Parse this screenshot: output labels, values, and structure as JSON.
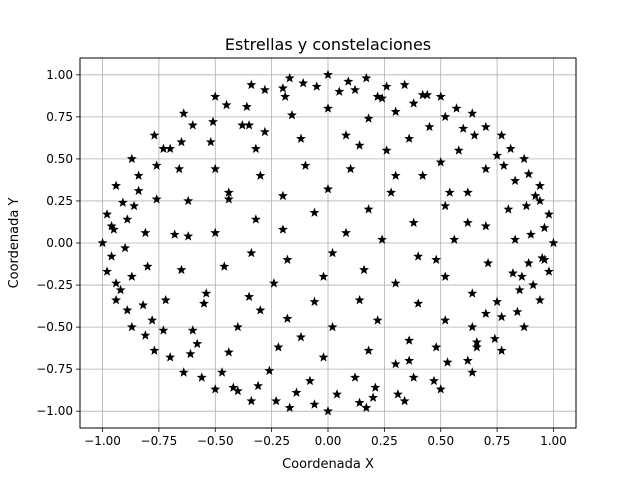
{
  "chart_data": {
    "type": "scatter",
    "title": "Estrellas y constelaciones",
    "xlabel": "Coordenada X",
    "ylabel": "Coordenada Y",
    "xlim": [
      -1.1,
      1.1
    ],
    "ylim": [
      -1.1,
      1.1
    ],
    "xticks": [
      -1.0,
      -0.75,
      -0.5,
      -0.25,
      0.0,
      0.25,
      0.5,
      0.75,
      1.0
    ],
    "xtick_labels": [
      "−1.00",
      "−0.75",
      "−0.50",
      "−0.25",
      "0.00",
      "0.25",
      "0.50",
      "0.75",
      "1.00"
    ],
    "yticks": [
      -1.0,
      -0.75,
      -0.5,
      -0.25,
      0.0,
      0.25,
      0.5,
      0.75,
      1.0
    ],
    "ytick_labels": [
      "−1.00",
      "−0.75",
      "−0.50",
      "−0.25",
      "0.00",
      "0.25",
      "0.50",
      "0.75",
      "1.00"
    ],
    "grid": true,
    "marker": "star",
    "marker_color": "#000000",
    "series": [
      {
        "points": [
          [
            0.0,
            1.0
          ],
          [
            0.17,
            0.98
          ],
          [
            0.34,
            0.94
          ],
          [
            0.5,
            0.87
          ],
          [
            0.64,
            0.77
          ],
          [
            0.77,
            0.64
          ],
          [
            0.87,
            0.5
          ],
          [
            0.94,
            0.34
          ],
          [
            0.98,
            0.17
          ],
          [
            1.0,
            0.0
          ],
          [
            0.98,
            -0.17
          ],
          [
            0.94,
            -0.34
          ],
          [
            0.87,
            -0.5
          ],
          [
            0.77,
            -0.64
          ],
          [
            0.64,
            -0.77
          ],
          [
            0.5,
            -0.87
          ],
          [
            0.34,
            -0.94
          ],
          [
            0.17,
            -0.98
          ],
          [
            0.0,
            -1.0
          ],
          [
            -0.17,
            -0.98
          ],
          [
            -0.34,
            -0.94
          ],
          [
            -0.5,
            -0.87
          ],
          [
            -0.64,
            -0.77
          ],
          [
            -0.77,
            -0.64
          ],
          [
            -0.87,
            -0.5
          ],
          [
            -0.94,
            -0.34
          ],
          [
            -0.98,
            -0.17
          ],
          [
            -1.0,
            0.0
          ],
          [
            -0.98,
            0.17
          ],
          [
            -0.94,
            0.34
          ],
          [
            -0.87,
            0.5
          ],
          [
            -0.77,
            0.64
          ],
          [
            -0.64,
            0.77
          ],
          [
            -0.5,
            0.87
          ],
          [
            -0.34,
            0.94
          ],
          [
            -0.17,
            0.98
          ],
          [
            0.09,
            0.96
          ],
          [
            0.26,
            0.93
          ],
          [
            0.42,
            0.88
          ],
          [
            0.57,
            0.8
          ],
          [
            0.7,
            0.69
          ],
          [
            0.81,
            0.56
          ],
          [
            0.89,
            0.41
          ],
          [
            0.94,
            0.25
          ],
          [
            0.96,
            0.09
          ],
          [
            0.95,
            -0.09
          ],
          [
            0.91,
            -0.25
          ],
          [
            0.84,
            -0.41
          ],
          [
            0.74,
            -0.57
          ],
          [
            0.62,
            -0.7
          ],
          [
            0.47,
            -0.82
          ],
          [
            0.31,
            -0.9
          ],
          [
            0.14,
            -0.95
          ],
          [
            -0.06,
            -0.96
          ],
          [
            -0.23,
            -0.94
          ],
          [
            -0.4,
            -0.88
          ],
          [
            -0.56,
            -0.8
          ],
          [
            -0.7,
            -0.68
          ],
          [
            -0.81,
            -0.55
          ],
          [
            -0.89,
            -0.4
          ],
          [
            -0.94,
            -0.24
          ],
          [
            -0.96,
            -0.08
          ],
          [
            -0.95,
            0.08
          ],
          [
            -0.91,
            0.24
          ],
          [
            -0.84,
            0.4
          ],
          [
            -0.73,
            0.56
          ],
          [
            -0.6,
            0.7
          ],
          [
            -0.45,
            0.82
          ],
          [
            -0.28,
            0.91
          ],
          [
            -0.11,
            0.95
          ],
          [
            0.05,
            0.9
          ],
          [
            0.22,
            0.87
          ],
          [
            0.38,
            0.83
          ],
          [
            0.52,
            0.75
          ],
          [
            0.65,
            0.64
          ],
          [
            0.75,
            0.52
          ],
          [
            0.83,
            0.37
          ],
          [
            0.88,
            0.22
          ],
          [
            0.9,
            0.05
          ],
          [
            0.89,
            -0.12
          ],
          [
            0.85,
            -0.28
          ],
          [
            0.77,
            -0.44
          ],
          [
            0.66,
            -0.59
          ],
          [
            0.53,
            -0.71
          ],
          [
            0.38,
            -0.8
          ],
          [
            0.21,
            -0.86
          ],
          [
            0.04,
            -0.9
          ],
          [
            -0.14,
            -0.89
          ],
          [
            -0.31,
            -0.85
          ],
          [
            -0.47,
            -0.77
          ],
          [
            -0.61,
            -0.66
          ],
          [
            -0.73,
            -0.52
          ],
          [
            -0.82,
            -0.37
          ],
          [
            -0.87,
            -0.2
          ],
          [
            -0.9,
            -0.03
          ],
          [
            -0.89,
            0.14
          ],
          [
            -0.84,
            0.31
          ],
          [
            -0.76,
            0.46
          ],
          [
            -0.65,
            0.6
          ],
          [
            -0.51,
            0.72
          ],
          [
            -0.36,
            0.81
          ],
          [
            -0.19,
            0.87
          ],
          [
            -0.05,
            0.93
          ],
          [
            0.12,
            0.91
          ],
          [
            0.3,
            0.78
          ],
          [
            0.45,
            0.69
          ],
          [
            0.58,
            0.55
          ],
          [
            0.7,
            0.44
          ],
          [
            0.8,
            0.2
          ],
          [
            0.83,
            0.02
          ],
          [
            0.82,
            -0.18
          ],
          [
            0.75,
            -0.35
          ],
          [
            0.64,
            -0.5
          ],
          [
            0.48,
            -0.62
          ],
          [
            0.3,
            -0.72
          ],
          [
            0.12,
            -0.8
          ],
          [
            -0.08,
            -0.82
          ],
          [
            -0.26,
            -0.76
          ],
          [
            -0.44,
            -0.65
          ],
          [
            -0.6,
            -0.52
          ],
          [
            -0.72,
            -0.34
          ],
          [
            -0.8,
            -0.14
          ],
          [
            -0.81,
            0.06
          ],
          [
            -0.76,
            0.26
          ],
          [
            -0.66,
            0.44
          ],
          [
            -0.52,
            0.6
          ],
          [
            -0.35,
            0.7
          ],
          [
            -0.16,
            0.76
          ],
          [
            0.0,
            0.8
          ],
          [
            0.18,
            0.74
          ],
          [
            0.36,
            0.62
          ],
          [
            0.5,
            0.48
          ],
          [
            0.62,
            0.3
          ],
          [
            0.7,
            0.1
          ],
          [
            0.71,
            -0.12
          ],
          [
            0.64,
            -0.3
          ],
          [
            0.52,
            -0.46
          ],
          [
            0.36,
            -0.58
          ],
          [
            0.18,
            -0.64
          ],
          [
            -0.02,
            -0.68
          ],
          [
            -0.22,
            -0.62
          ],
          [
            -0.4,
            -0.5
          ],
          [
            -0.55,
            -0.36
          ],
          [
            -0.65,
            -0.16
          ],
          [
            -0.68,
            0.05
          ],
          [
            -0.62,
            0.25
          ],
          [
            -0.5,
            0.44
          ],
          [
            -0.32,
            0.56
          ],
          [
            -0.12,
            0.62
          ],
          [
            0.08,
            0.64
          ],
          [
            0.26,
            0.55
          ],
          [
            0.42,
            0.4
          ],
          [
            0.52,
            0.22
          ],
          [
            0.56,
            0.02
          ],
          [
            0.52,
            -0.2
          ],
          [
            0.4,
            -0.36
          ],
          [
            0.22,
            -0.46
          ],
          [
            0.02,
            -0.5
          ],
          [
            -0.18,
            -0.45
          ],
          [
            -0.35,
            -0.32
          ],
          [
            -0.46,
            -0.14
          ],
          [
            -0.5,
            0.06
          ],
          [
            -0.44,
            0.26
          ],
          [
            -0.3,
            0.4
          ],
          [
            -0.1,
            0.46
          ],
          [
            0.1,
            0.44
          ],
          [
            0.28,
            0.3
          ],
          [
            0.38,
            0.12
          ],
          [
            0.4,
            -0.08
          ],
          [
            0.3,
            -0.24
          ],
          [
            0.14,
            -0.34
          ],
          [
            -0.06,
            -0.35
          ],
          [
            -0.24,
            -0.24
          ],
          [
            -0.34,
            -0.06
          ],
          [
            -0.32,
            0.14
          ],
          [
            -0.2,
            0.28
          ],
          [
            0.0,
            0.32
          ],
          [
            0.18,
            0.2
          ],
          [
            0.24,
            0.02
          ],
          [
            0.16,
            -0.16
          ],
          [
            -0.02,
            -0.2
          ],
          [
            -0.18,
            -0.1
          ],
          [
            -0.2,
            0.08
          ],
          [
            -0.06,
            0.18
          ],
          [
            0.08,
            0.06
          ],
          [
            0.02,
            -0.06
          ],
          [
            -0.28,
            0.66
          ],
          [
            0.6,
            0.68
          ],
          [
            -0.58,
            -0.6
          ],
          [
            0.66,
            -0.62
          ],
          [
            -0.86,
            0.22
          ],
          [
            0.86,
            -0.2
          ],
          [
            0.44,
            0.88
          ],
          [
            -0.42,
            -0.86
          ],
          [
            0.92,
            0.28
          ],
          [
            -0.92,
            -0.28
          ],
          [
            0.24,
            0.86
          ],
          [
            -0.7,
            0.56
          ],
          [
            0.7,
            -0.42
          ],
          [
            -0.44,
            0.3
          ],
          [
            0.48,
            -0.1
          ],
          [
            -0.12,
            -0.56
          ],
          [
            0.14,
            0.58
          ],
          [
            -0.62,
            0.04
          ],
          [
            0.62,
            0.12
          ],
          [
            0.36,
            -0.7
          ],
          [
            -0.38,
            0.7
          ],
          [
            -0.78,
            -0.46
          ],
          [
            0.78,
            0.46
          ],
          [
            0.2,
            -0.92
          ],
          [
            -0.2,
            0.92
          ],
          [
            0.96,
            -0.1
          ],
          [
            -0.96,
            0.1
          ],
          [
            0.54,
            0.3
          ],
          [
            -0.54,
            -0.3
          ],
          [
            0.3,
            0.4
          ],
          [
            -0.3,
            -0.4
          ]
        ]
      }
    ]
  }
}
